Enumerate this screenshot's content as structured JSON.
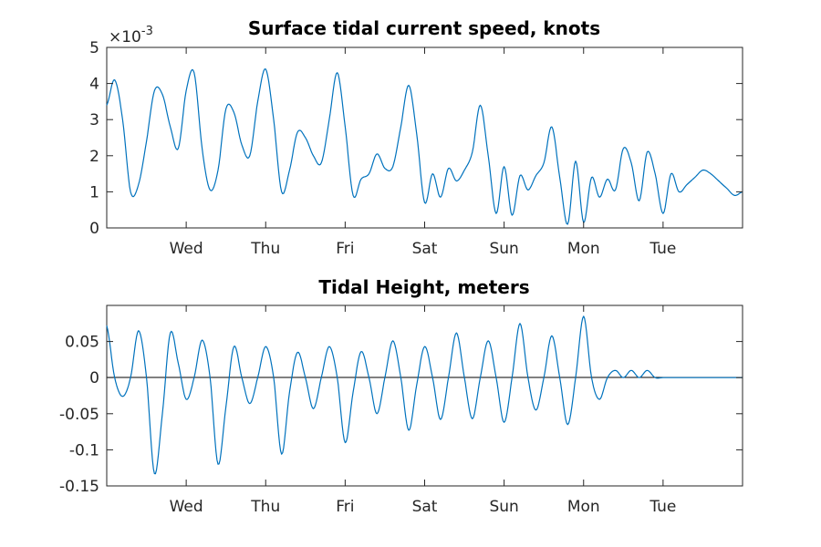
{
  "chart_data": [
    {
      "type": "line",
      "title": "Surface tidal current speed, knots",
      "xlabel": "",
      "ylabel": "",
      "x_ticks": [
        "Wed",
        "Thu",
        "Fri",
        "Sat",
        "Sun",
        "Mon",
        "Tue"
      ],
      "y_ticks": [
        "0",
        "1",
        "2",
        "3",
        "4",
        "5"
      ],
      "y_exponent": "×10",
      "y_exponent_power": "-3",
      "xlim": [
        "Tue 00:00",
        "Wed 00:00 + 7d"
      ],
      "ylim": [
        0,
        5
      ],
      "x_start_label": "Tue",
      "grid": false,
      "color": "#0072bd",
      "series": [
        {
          "t_days": [
            0.0,
            0.1,
            0.2,
            0.3,
            0.4,
            0.5,
            0.6,
            0.7,
            0.8,
            0.9,
            1.0,
            1.1,
            1.2,
            1.3,
            1.4,
            1.5,
            1.6,
            1.7,
            1.8,
            1.9,
            2.0,
            2.1,
            2.2,
            2.3,
            2.4,
            2.5,
            2.6,
            2.7,
            2.8,
            2.9,
            3.0,
            3.1,
            3.2,
            3.3,
            3.4,
            3.5,
            3.6,
            3.7,
            3.8,
            3.9,
            4.0,
            4.1,
            4.2,
            4.3,
            4.4,
            4.5,
            4.6,
            4.7,
            4.8,
            4.9,
            5.0,
            5.1,
            5.2,
            5.3,
            5.4,
            5.5,
            5.6,
            5.7,
            5.8,
            5.9,
            6.0,
            6.1,
            6.2,
            6.3,
            6.4,
            6.5,
            6.6,
            6.7,
            6.8,
            6.9,
            7.0,
            7.1,
            7.2,
            7.3,
            7.4,
            7.5,
            7.6,
            7.7,
            7.8,
            7.9,
            8.0
          ],
          "values": [
            3.4,
            4.1,
            3.0,
            1.0,
            1.2,
            2.4,
            3.8,
            3.7,
            2.8,
            2.2,
            3.8,
            4.3,
            2.2,
            1.05,
            1.6,
            3.3,
            3.2,
            2.3,
            2.0,
            3.5,
            4.4,
            3.0,
            1.0,
            1.6,
            2.65,
            2.5,
            2.0,
            1.8,
            3.0,
            4.3,
            2.8,
            0.9,
            1.35,
            1.5,
            2.05,
            1.65,
            1.7,
            2.8,
            3.95,
            2.6,
            0.7,
            1.5,
            0.85,
            1.65,
            1.3,
            1.6,
            2.1,
            3.4,
            2.0,
            0.4,
            1.7,
            0.35,
            1.45,
            1.05,
            1.45,
            1.8,
            2.8,
            1.4,
            0.1,
            1.85,
            0.15,
            1.4,
            0.85,
            1.35,
            1.05,
            2.2,
            1.8,
            0.75,
            2.1,
            1.5,
            0.4,
            1.5,
            1.0,
            1.2,
            1.4,
            1.6,
            1.5,
            1.3,
            1.1,
            0.9,
            1.0
          ]
        }
      ]
    },
    {
      "type": "line",
      "title": "Tidal Height, meters",
      "xlabel": "",
      "ylabel": "",
      "x_ticks": [
        "Wed",
        "Thu",
        "Fri",
        "Sat",
        "Sun",
        "Mon",
        "Tue"
      ],
      "y_ticks": [
        "0.05",
        "0",
        "-0.05",
        "-0.1",
        "-0.15"
      ],
      "ylim": [
        -0.15,
        0.1
      ],
      "zero_line": true,
      "grid": false,
      "color": "#0072bd",
      "series": [
        {
          "t_days": [
            0.0,
            0.1,
            0.2,
            0.3,
            0.4,
            0.5,
            0.6,
            0.7,
            0.8,
            0.9,
            1.0,
            1.1,
            1.2,
            1.3,
            1.4,
            1.5,
            1.6,
            1.7,
            1.8,
            1.9,
            2.0,
            2.1,
            2.2,
            2.3,
            2.4,
            2.5,
            2.6,
            2.7,
            2.8,
            2.9,
            3.0,
            3.1,
            3.2,
            3.3,
            3.4,
            3.5,
            3.6,
            3.7,
            3.8,
            3.9,
            4.0,
            4.1,
            4.2,
            4.3,
            4.4,
            4.5,
            4.6,
            4.7,
            4.8,
            4.9,
            5.0,
            5.1,
            5.2,
            5.3,
            5.4,
            5.5,
            5.6,
            5.7,
            5.8,
            5.9,
            6.0,
            6.1,
            6.2,
            6.3,
            6.4,
            6.5,
            6.6,
            6.7,
            6.8,
            6.9,
            7.0,
            7.1,
            7.2,
            7.3,
            7.4,
            7.5,
            7.6,
            7.7,
            7.8,
            7.9,
            8.0
          ],
          "values": [
            0.072,
            0.0,
            -0.026,
            0.0,
            0.065,
            0.0,
            -0.133,
            -0.05,
            0.062,
            0.02,
            -0.03,
            0.0,
            0.052,
            0.0,
            -0.12,
            -0.04,
            0.043,
            0.0,
            -0.036,
            0.0,
            0.043,
            0.0,
            -0.106,
            -0.02,
            0.035,
            0.0,
            -0.043,
            0.0,
            0.043,
            0.0,
            -0.09,
            -0.02,
            0.036,
            0.0,
            -0.05,
            0.0,
            0.051,
            0.0,
            -0.073,
            -0.01,
            0.043,
            0.0,
            -0.058,
            0.0,
            0.062,
            0.0,
            -0.057,
            0.0,
            0.051,
            0.0,
            -0.062,
            0.0,
            0.075,
            0.0,
            -0.045,
            0.0,
            0.058,
            0.0,
            -0.065,
            0.0,
            0.085,
            0.0,
            -0.03,
            0.0,
            0.01,
            0.0,
            0.01,
            0.0,
            0.01,
            0.0,
            0.0,
            0.0,
            0.0,
            0.0,
            0.0,
            0.0,
            0.0,
            0.0,
            0.0,
            0.0,
            0.0
          ]
        }
      ]
    }
  ]
}
